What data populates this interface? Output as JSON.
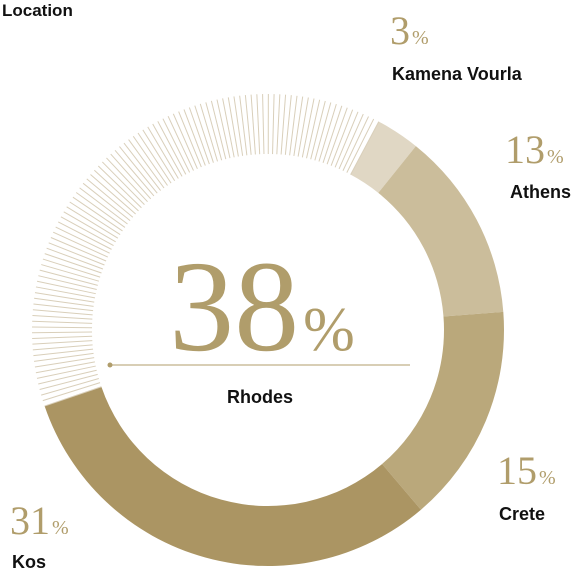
{
  "chart_data": {
    "type": "donut",
    "title": "Location",
    "unit": "%",
    "categories": [
      "Kamena Vourla",
      "Athens",
      "Crete",
      "Kos",
      "Rhodes"
    ],
    "values": [
      3,
      13,
      15,
      31,
      38
    ],
    "colors": [
      "#e0d7c4",
      "#cbbd9b",
      "#baa87b",
      "#ab9563",
      "#d9cfba"
    ],
    "highlight": 4
  }
}
